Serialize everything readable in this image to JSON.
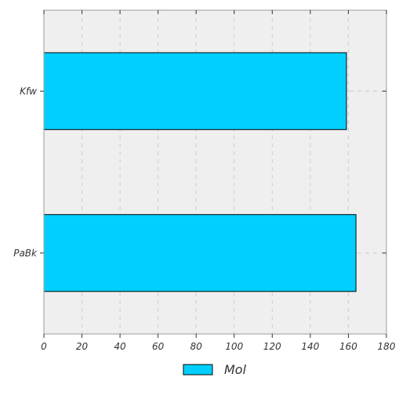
{
  "chart_data": {
    "type": "bar",
    "orientation": "horizontal",
    "categories": [
      "Kfw",
      "PaBk"
    ],
    "series": [
      {
        "name": "Mol",
        "values": [
          159,
          164
        ]
      }
    ],
    "title": "",
    "xlabel": "",
    "ylabel": "",
    "xlim": [
      0,
      180
    ],
    "xticks": [
      "0",
      "20",
      "40",
      "60",
      "80",
      "100",
      "120",
      "140",
      "160",
      "180"
    ],
    "grid": true,
    "legend_position": "bottom-center"
  },
  "colors": {
    "bar_fill": "#00cfff",
    "bar_stroke": "#000000",
    "plot_background": "#efefef",
    "grid": "#cccccc"
  }
}
